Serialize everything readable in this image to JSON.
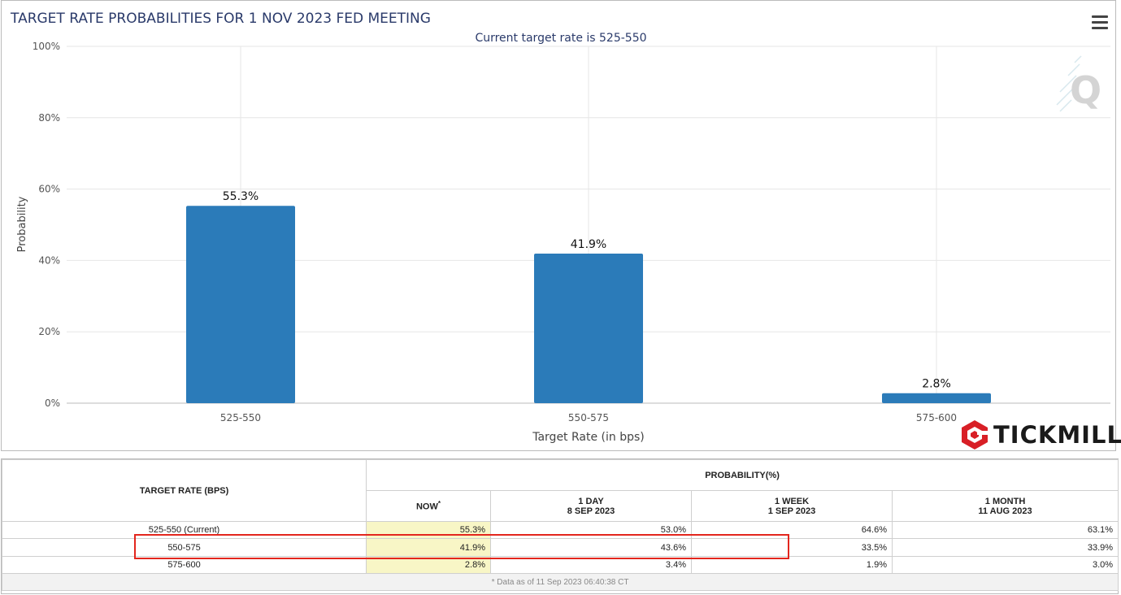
{
  "chart_data": {
    "type": "bar",
    "title": "TARGET RATE PROBABILITIES FOR 1 NOV 2023 FED MEETING",
    "subtitle": "Current target rate is 525-550",
    "xlabel": "Target Rate (in bps)",
    "ylabel": "Probability",
    "categories": [
      "525-550",
      "550-575",
      "575-600"
    ],
    "values": [
      55.3,
      41.9,
      2.8
    ],
    "data_labels": [
      "55.3%",
      "41.9%",
      "2.8%"
    ],
    "ylim": [
      0,
      100
    ],
    "y_ticks": [
      "0%",
      "20%",
      "40%",
      "60%",
      "80%",
      "100%"
    ],
    "grid": true,
    "bar_color": "#2b7bb9"
  },
  "menu_icon": "hamburger-menu-icon",
  "watermark_letter": "Q",
  "logo": {
    "text": "TICKMILL",
    "icon": "tickmill-hexagon-icon",
    "color": "#d81f26"
  },
  "table": {
    "rate_header": "TARGET RATE (BPS)",
    "prob_header": "PROBABILITY(%)",
    "columns": [
      {
        "line1": "NOW",
        "sup": "*",
        "line2": ""
      },
      {
        "line1": "1 DAY",
        "line2": "8 SEP 2023"
      },
      {
        "line1": "1 WEEK",
        "line2": "1 SEP 2023"
      },
      {
        "line1": "1 MONTH",
        "line2": "11 AUG 2023"
      }
    ],
    "rows": [
      {
        "rate": "525-550 (Current)",
        "now": "55.3%",
        "day": "53.0%",
        "week": "64.6%",
        "month": "63.1%"
      },
      {
        "rate": "550-575",
        "now": "41.9%",
        "day": "43.6%",
        "week": "33.5%",
        "month": "33.9%"
      },
      {
        "rate": "575-600",
        "now": "2.8%",
        "day": "3.4%",
        "week": "1.9%",
        "month": "3.0%"
      }
    ],
    "footnote": "* Data as of 11 Sep 2023 06:40:38 CT"
  },
  "colors": {
    "highlight": "#e3261d",
    "now_bg": "#f8f6c6",
    "title": "#2a3a6a"
  }
}
